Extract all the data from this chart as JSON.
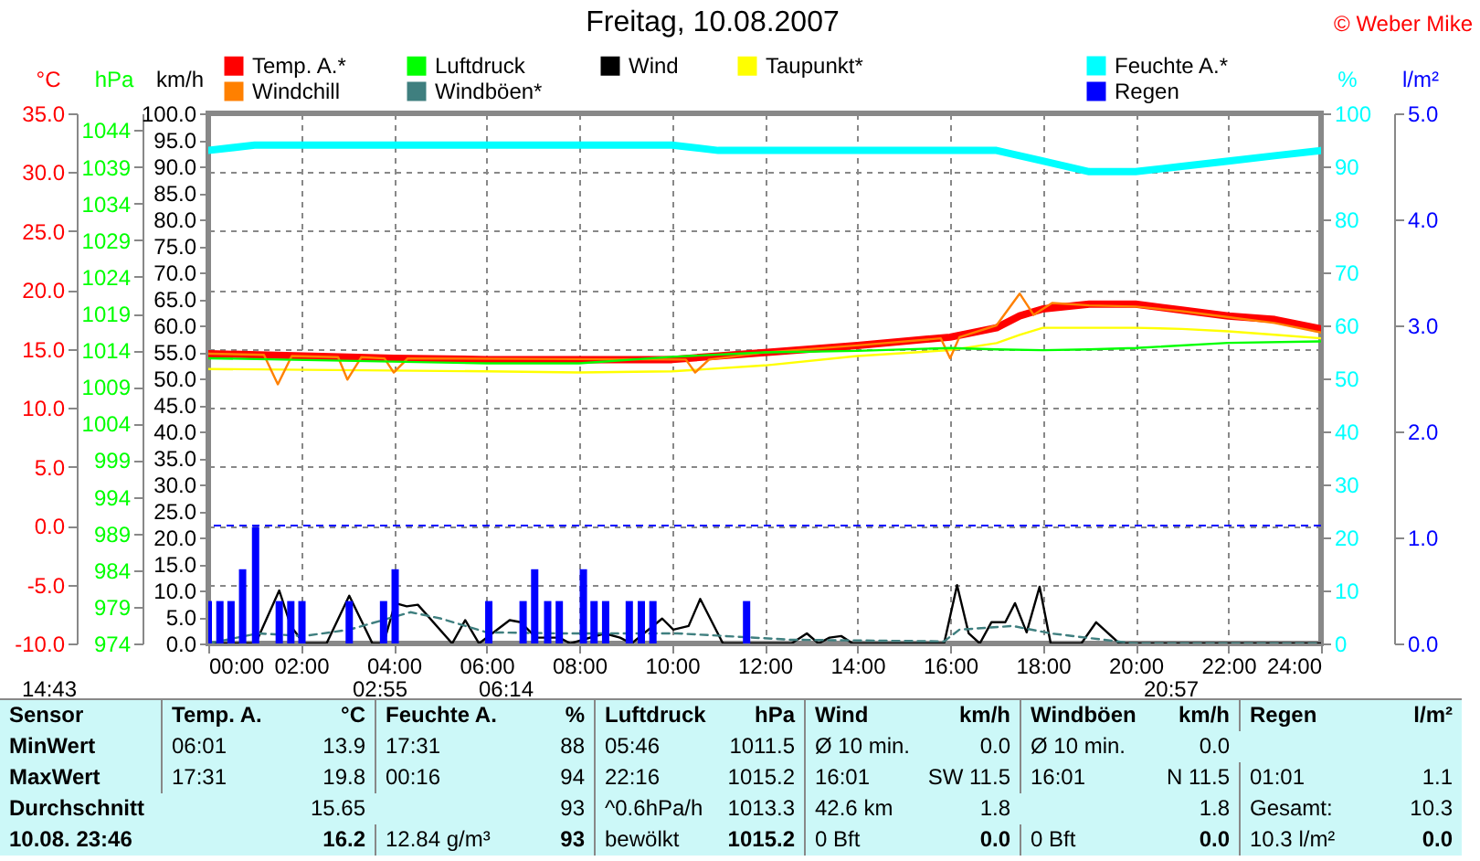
{
  "chart_data": [
    {
      "type": "line",
      "title": "Freitag, 10.08.2007",
      "ylabel": "°C",
      "y2label": "hPa",
      "y3label": "km/h",
      "xlim": [
        0,
        24
      ],
      "xticks": [
        {
          "value": 0,
          "label": "00:00"
        },
        {
          "value": 2,
          "label": "02:00"
        },
        {
          "value": 4,
          "label": "04:00"
        },
        {
          "value": 6,
          "label": "06:00"
        },
        {
          "value": 8,
          "label": "08:00"
        },
        {
          "value": 10,
          "label": "10:00"
        },
        {
          "value": 12,
          "label": "12:00"
        },
        {
          "value": 14,
          "label": "14:00"
        },
        {
          "value": 16,
          "label": "16:00"
        },
        {
          "value": 18,
          "label": "18:00"
        },
        {
          "value": 20,
          "label": "20:00"
        },
        {
          "value": 22,
          "label": "22:00"
        },
        {
          "value": 24,
          "label": "24:00"
        }
      ],
      "ylim": [
        -10,
        35
      ],
      "yticks": [
        {
          "value": -10,
          "label": "-10.0"
        },
        {
          "value": -5,
          "label": "-5.0"
        },
        {
          "value": 0,
          "label": "0.0"
        },
        {
          "value": 5,
          "label": "5.0"
        },
        {
          "value": 10,
          "label": "10.0"
        },
        {
          "value": 15,
          "label": "15.0"
        },
        {
          "value": 20,
          "label": "20.0"
        },
        {
          "value": 25,
          "label": "25.0"
        },
        {
          "value": 30,
          "label": "30.0"
        },
        {
          "value": 35,
          "label": "35.0"
        }
      ],
      "y2lim": [
        974,
        1046.3
      ],
      "y2ticks": [
        974,
        979,
        984,
        989,
        994,
        999,
        1004,
        1009,
        1014,
        1019,
        1024,
        1029,
        1034,
        1039,
        1044
      ],
      "y3lim": [
        0,
        100
      ],
      "y3ticks": [
        {
          "value": 0,
          "label": "0.0"
        },
        {
          "value": 5,
          "label": "5.0"
        },
        {
          "value": 10,
          "label": "10.0"
        },
        {
          "value": 15,
          "label": "15.0"
        },
        {
          "value": 20,
          "label": "20.0"
        },
        {
          "value": 25,
          "label": "25.0"
        },
        {
          "value": 30,
          "label": "30.0"
        },
        {
          "value": 35,
          "label": "35.0"
        },
        {
          "value": 40,
          "label": "40.0"
        },
        {
          "value": 45,
          "label": "45.0"
        },
        {
          "value": 50,
          "label": "50.0"
        },
        {
          "value": 55,
          "label": "55.0"
        },
        {
          "value": 60,
          "label": "60.0"
        },
        {
          "value": 65,
          "label": "65.0"
        },
        {
          "value": 70,
          "label": "70.0"
        },
        {
          "value": 75,
          "label": "75.0"
        },
        {
          "value": 80,
          "label": "80.0"
        },
        {
          "value": 85,
          "label": "85.0"
        },
        {
          "value": 90,
          "label": "90.0"
        },
        {
          "value": 95,
          "label": "95.0"
        },
        {
          "value": 100,
          "label": "100.0"
        }
      ],
      "grid": true,
      "legend": "top",
      "ref_lines": [
        {
          "axis": "y",
          "value": 0,
          "color": "#0000ff",
          "line_style": "dashed"
        }
      ],
      "series": [
        {
          "name": "Temp. A.*",
          "color": "#ff0000",
          "x": [
            0,
            4,
            6,
            10,
            12,
            14,
            16,
            17,
            17.5,
            18,
            19,
            20,
            21,
            22,
            23,
            24
          ],
          "values": [
            14.6,
            14.2,
            14.1,
            14.1,
            14.7,
            15.3,
            16.0,
            16.8,
            17.8,
            18.4,
            18.8,
            18.8,
            18.3,
            17.8,
            17.5,
            16.7
          ]
        },
        {
          "name": "Luftdruck",
          "color": "#00ff00",
          "axis": "y2",
          "x": [
            0,
            6,
            8,
            10,
            12,
            14,
            16,
            17,
            18,
            19,
            20,
            22,
            24
          ],
          "values": [
            1012.9,
            1012.2,
            1012.2,
            1013.1,
            1013.7,
            1013.9,
            1014.3,
            1014.1,
            1014.0,
            1014.1,
            1014.3,
            1015.0,
            1015.2
          ]
        },
        {
          "name": "Wind",
          "color": "#000000",
          "axis": "y3",
          "x": [
            0,
            1.02,
            1.53,
            1.78,
            2.06,
            2.55,
            3.04,
            3.54,
            3.78,
            4.03,
            4.28,
            4.52,
            5.26,
            5.54,
            5.84,
            6.5,
            6.74,
            7.07,
            7.57,
            7.81,
            8.55,
            8.88,
            9.13,
            9.79,
            10.03,
            10.36,
            10.61,
            11.1,
            12.58,
            12.91,
            13.16,
            13.4,
            13.65,
            13.9,
            15.87,
            16.15,
            16.4,
            16.64,
            16.89,
            17.19,
            17.4,
            17.65,
            17.93,
            18.17,
            18.83,
            19.15,
            19.65,
            24
          ],
          "values": [
            0,
            0,
            10,
            3.3,
            0,
            0,
            9,
            0,
            0,
            7.6,
            7,
            7.3,
            0,
            4.4,
            0,
            4.4,
            4,
            1.1,
            1.1,
            0,
            1.9,
            1.1,
            0,
            4.7,
            2.6,
            3.3,
            8.4,
            0,
            0,
            1.9,
            0,
            1.1,
            1.4,
            0,
            0,
            11,
            1.9,
            0,
            4,
            4,
            7.6,
            2.1,
            10.7,
            0,
            0,
            4,
            0,
            0
          ]
        },
        {
          "name": "Taupunkt*",
          "color": "#ffff00",
          "x": [
            0,
            6,
            8,
            10,
            12,
            14,
            16,
            17,
            17.5,
            18,
            20,
            21,
            22,
            23,
            24
          ],
          "values": [
            13.3,
            13.1,
            13.0,
            13.1,
            13.6,
            14.4,
            14.9,
            15.5,
            16.2,
            16.8,
            16.8,
            16.7,
            16.5,
            16.2,
            15.9
          ]
        },
        {
          "name": "Windchill",
          "color": "#ff8000",
          "x": [
            0,
            1.2,
            1.5,
            1.8,
            2.8,
            3,
            3.3,
            3.8,
            4,
            4.3,
            10.3,
            10.5,
            10.8,
            12,
            14,
            15.8,
            16,
            16.2,
            17,
            17.5,
            17.8,
            18.2,
            19,
            20,
            21,
            22,
            23,
            24
          ],
          "values": [
            14.6,
            14.5,
            12.0,
            14.4,
            14.3,
            12.4,
            14.3,
            14.2,
            13.0,
            14.2,
            14.1,
            13.0,
            14.1,
            14.7,
            15.3,
            15.9,
            14.2,
            16.0,
            17.0,
            19.7,
            17.9,
            18.9,
            18.7,
            18.6,
            18.2,
            17.7,
            17.2,
            16.4
          ]
        },
        {
          "name": "Windböen*",
          "color": "#3f7f7f",
          "axis": "y3",
          "line_style": "dashed",
          "x": [
            0,
            1.07,
            2.06,
            3.04,
            4.36,
            5.02,
            6.0,
            7.65,
            10.12,
            12.58,
            15.87,
            16.2,
            17.35,
            18.17,
            19.98,
            24
          ],
          "values": [
            0,
            1.9,
            1.4,
            2.6,
            5.9,
            4.7,
            2.1,
            1.9,
            1.9,
            0.7,
            0.4,
            2.6,
            3.3,
            1.9,
            0,
            0
          ]
        }
      ],
      "annotations": [
        "© Weber Mike",
        "14:43",
        "02:55",
        "06:14",
        "20:57",
        "Sensor",
        "Temp. A.",
        "°C",
        "Feuchte A.",
        "%",
        "Luftdruck",
        "hPa",
        "Wind",
        "km/h",
        "Windböen",
        "km/h",
        "Regen",
        "l/m²",
        "MinWert",
        "06:01",
        "13.9",
        "17:31",
        "88",
        "05:46",
        "1011.5",
        "Ø 10 min.",
        "0.0",
        "Ø 10 min.",
        "0.0",
        "MaxWert",
        "17:31",
        "19.8",
        "00:16",
        "94",
        "22:16",
        "1015.2",
        "16:01",
        "SW 11.5",
        "16:01",
        "N 11.5",
        "01:01",
        "1.1",
        "Durchschnitt",
        "15.65",
        "93",
        "^0.6hPa/h",
        "1013.3",
        "42.6 km",
        "1.8",
        "1.8",
        "Gesamt:",
        "10.3",
        "10.08. 23:46",
        "16.2",
        "12.84 g/m³",
        "93",
        "bewölkt",
        "1015.2",
        "0 Bft",
        "0.0",
        "0 Bft",
        "0.0",
        "10.3 l/m²",
        "0.0"
      ]
    },
    {
      "type": "line",
      "ylabel": "%",
      "y2label": "l/m²",
      "tick_labels": "y",
      "legend": "top right",
      "xlim": [
        0,
        24
      ],
      "ylim": [
        0,
        100
      ],
      "yticks": [
        0,
        10,
        20,
        30,
        40,
        50,
        60,
        70,
        80,
        90,
        100
      ],
      "y2lim": [
        0,
        5
      ],
      "y2ticks": [
        {
          "value": 0,
          "label": "0.0"
        },
        {
          "value": 1,
          "label": "1.0"
        },
        {
          "value": 2,
          "label": "2.0"
        },
        {
          "value": 3,
          "label": "3.0"
        },
        {
          "value": 4,
          "label": "4.0"
        },
        {
          "value": 5,
          "label": "5.0"
        }
      ],
      "series": [
        {
          "name": "Feuchte A.*",
          "color": "#00ffff",
          "x": [
            0,
            1,
            10,
            11,
            16,
            17,
            18,
            19,
            20,
            21,
            22,
            23,
            24
          ],
          "values": [
            93,
            94,
            94,
            93,
            93,
            93,
            91,
            89,
            89,
            90,
            91,
            92,
            93
          ]
        },
        {
          "name": "Regen",
          "color": "#0000ff",
          "axis": "y2",
          "type": "bar",
          "x": [
            0,
            0.25,
            0.49,
            0.74,
            1.02,
            1.53,
            1.78,
            2.02,
            3.04,
            3.78,
            4.03,
            6.05,
            6.79,
            7.04,
            7.32,
            7.57,
            8.09,
            8.32,
            8.57,
            9.08,
            9.34,
            9.59,
            11.61
          ],
          "values": [
            0.4,
            0.4,
            0.4,
            0.7,
            1.1,
            0.4,
            0.4,
            0.4,
            0.4,
            0.4,
            0.7,
            0.4,
            0.4,
            0.7,
            0.4,
            0.4,
            0.7,
            0.4,
            0.4,
            0.4,
            0.4,
            0.4,
            0.4
          ]
        }
      ]
    }
  ]
}
